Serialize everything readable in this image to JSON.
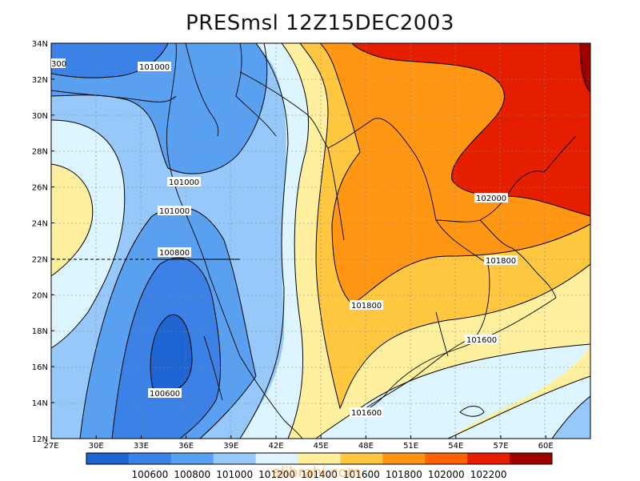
{
  "title": "PRESmsl  12Z15DEC2003",
  "watermark": "alibrahi.com",
  "axes": {
    "x_ticks": [
      "27E",
      "30E",
      "33E",
      "36E",
      "39E",
      "42E",
      "45E",
      "48E",
      "51E",
      "54E",
      "57E",
      "60E"
    ],
    "y_ticks": [
      "34N",
      "32N",
      "30N",
      "28N",
      "26N",
      "24N",
      "22N",
      "20N",
      "18N",
      "16N",
      "14N",
      "12N"
    ]
  },
  "contour_labels": [
    "101000",
    "101000",
    "101000",
    "100800",
    "100600",
    "101800",
    "101800",
    "102000",
    "101600",
    "101600"
  ],
  "partial_label": "300",
  "colorbar": {
    "colors": [
      "#1e64d2",
      "#3c82e6",
      "#5aa0f0",
      "#96c8fa",
      "#dcf5ff",
      "#fff0a0",
      "#ffc840",
      "#ff9614",
      "#ff6400",
      "#e61e00",
      "#a00000"
    ],
    "labels": [
      "100600",
      "100800",
      "101000",
      "101200",
      "101400",
      "101600",
      "101800",
      "102000",
      "102200"
    ]
  }
}
